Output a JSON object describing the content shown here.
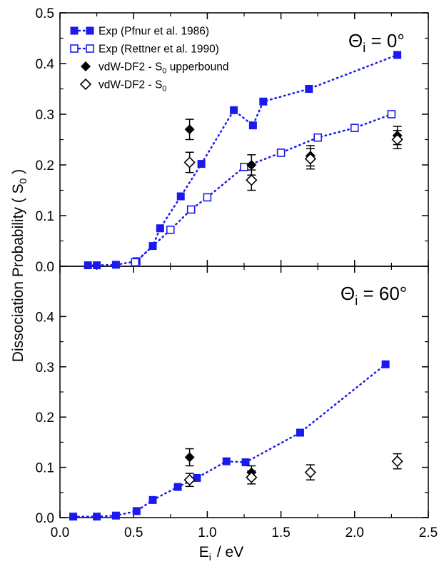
{
  "chart_data": {
    "type": "scatter",
    "xlabel": {
      "main": "E",
      "sub": "i",
      "rest": "/  eV"
    },
    "ylabel": {
      "main": "Dissociation Probability ( S",
      "sub": "0",
      "rest": " )"
    },
    "xlim": [
      0.0,
      2.5
    ],
    "x_ticks": [
      "0.0",
      "0.5",
      "1.0",
      "1.5",
      "2.0",
      "2.5"
    ],
    "x_tick_values": [
      0.0,
      0.5,
      1.0,
      1.5,
      2.0,
      2.5
    ],
    "colors": {
      "blue": "#1a1aef",
      "black": "#000000"
    },
    "legend": [
      {
        "text": "Exp (Pfnur et al. 1986)",
        "sub": "",
        "tail": "",
        "marker": "filled-square",
        "color": "#1a1aef",
        "line": true
      },
      {
        "text": "Exp (Rettner et al. 1990)",
        "sub": "",
        "tail": "",
        "marker": "open-square",
        "color": "#1a1aef",
        "line": true
      },
      {
        "text": "vdW-DF2 - S",
        "sub": "0",
        "tail": " upperbound",
        "marker": "filled-diamond",
        "color": "#000000",
        "line": false
      },
      {
        "text": "vdW-DF2 - S",
        "sub": "0",
        "tail": "",
        "marker": "open-diamond",
        "color": "#000000",
        "line": false
      }
    ],
    "panels": [
      {
        "label": {
          "theta": "Θ",
          "sub": "i",
          "rest": " = 0°"
        },
        "ylim": [
          0.0,
          0.5
        ],
        "y_ticks": [
          "0.0",
          "0.1",
          "0.2",
          "0.3",
          "0.4",
          "0.5"
        ],
        "y_tick_values": [
          0.0,
          0.1,
          0.2,
          0.3,
          0.4,
          0.5
        ],
        "series": [
          {
            "name": "Exp (Pfnur et al. 1986)",
            "marker": "filled-square",
            "color": "#1a1aef",
            "line": true,
            "x": [
              0.19,
              0.25,
              0.38,
              0.52,
              0.63,
              0.68,
              0.82,
              0.96,
              1.18,
              1.31,
              1.38,
              1.69,
              2.29
            ],
            "y": [
              0.002,
              0.002,
              0.003,
              0.01,
              0.04,
              0.075,
              0.138,
              0.202,
              0.308,
              0.278,
              0.325,
              0.35,
              0.417
            ]
          },
          {
            "name": "Exp (Rettner et al. 1990)",
            "marker": "open-square",
            "color": "#1a1aef",
            "line": true,
            "x": [
              0.51,
              0.75,
              0.89,
              1.0,
              1.25,
              1.5,
              1.75,
              2.0,
              2.25
            ],
            "y": [
              0.008,
              0.072,
              0.112,
              0.136,
              0.196,
              0.224,
              0.254,
              0.273,
              0.3
            ]
          },
          {
            "name": "vdW-DF2 - S0 upperbound",
            "marker": "filled-diamond",
            "color": "#000000",
            "line": false,
            "x": [
              0.88,
              1.3,
              1.7,
              2.29
            ],
            "y": [
              0.27,
              0.2,
              0.218,
              0.258
            ],
            "err": [
              0.02,
              0.02,
              0.02,
              0.018
            ]
          },
          {
            "name": "vdW-DF2 - S0",
            "marker": "open-diamond",
            "color": "#000000",
            "line": false,
            "x": [
              0.88,
              1.3,
              1.7,
              2.29
            ],
            "y": [
              0.205,
              0.17,
              0.212,
              0.25
            ],
            "err": [
              0.02,
              0.02,
              0.02,
              0.018
            ]
          }
        ]
      },
      {
        "label": {
          "theta": "Θ",
          "sub": "i",
          "rest": " = 60°"
        },
        "ylim": [
          0.0,
          0.5
        ],
        "y_ticks": [
          "0.0",
          "0.1",
          "0.2",
          "0.3",
          "0.4"
        ],
        "y_tick_values": [
          0.0,
          0.1,
          0.2,
          0.3,
          0.4
        ],
        "series": [
          {
            "name": "Exp (Pfnur et al. 1986)",
            "marker": "filled-square",
            "color": "#1a1aef",
            "line": true,
            "x": [
              0.09,
              0.25,
              0.38,
              0.52,
              0.63,
              0.8,
              0.93,
              1.13,
              1.26,
              1.63,
              2.21
            ],
            "y": [
              0.002,
              0.002,
              0.004,
              0.013,
              0.035,
              0.061,
              0.079,
              0.112,
              0.11,
              0.169,
              0.305
            ]
          },
          {
            "name": "vdW-DF2 - S0 upperbound",
            "marker": "filled-diamond",
            "color": "#000000",
            "line": false,
            "x": [
              0.88,
              1.3
            ],
            "y": [
              0.12,
              0.09
            ],
            "err": [
              0.017,
              0.013
            ]
          },
          {
            "name": "vdW-DF2 - S0",
            "marker": "open-diamond",
            "color": "#000000",
            "line": false,
            "x": [
              0.88,
              1.3,
              1.7,
              2.29
            ],
            "y": [
              0.075,
              0.08,
              0.09,
              0.112
            ],
            "err": [
              0.013,
              0.013,
              0.015,
              0.015
            ]
          }
        ]
      }
    ]
  }
}
